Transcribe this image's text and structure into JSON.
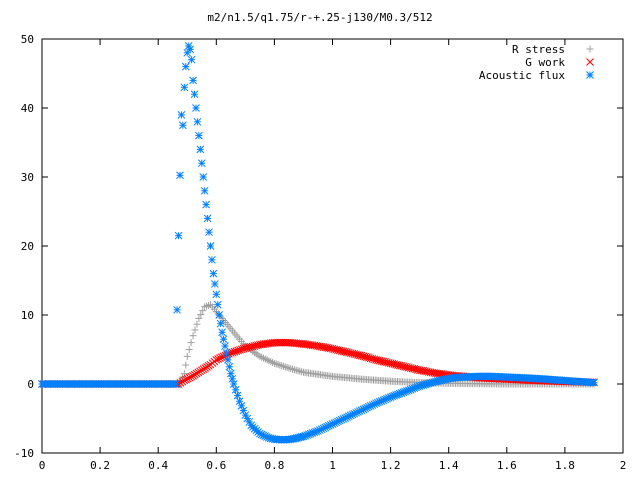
{
  "chart_data": {
    "type": "scatter",
    "title": "m2/n1.5/q1.75/r-+.25-j130/M0.3/512",
    "xlabel": "",
    "ylabel": "",
    "xlim": [
      0,
      2
    ],
    "ylim": [
      -10,
      50
    ],
    "xticks": [
      "0",
      "0.2",
      "0.4",
      "0.6",
      "0.8",
      "1",
      "1.2",
      "1.4",
      "1.6",
      "1.8",
      "2"
    ],
    "yticks": [
      "-10",
      "0",
      "10",
      "20",
      "30",
      "40",
      "50"
    ],
    "grid": false,
    "legend_position": "top-right",
    "series": [
      {
        "name": "R stress",
        "marker": "plus",
        "color": "#a0a0a0",
        "points": [
          [
            0.0,
            0
          ],
          [
            0.1,
            0
          ],
          [
            0.2,
            0
          ],
          [
            0.3,
            0
          ],
          [
            0.4,
            0
          ],
          [
            0.47,
            0
          ],
          [
            0.49,
            1.5
          ],
          [
            0.5,
            4
          ],
          [
            0.52,
            7
          ],
          [
            0.54,
            9.5
          ],
          [
            0.56,
            11.2
          ],
          [
            0.58,
            11.5
          ],
          [
            0.6,
            10.5
          ],
          [
            0.62,
            9.5
          ],
          [
            0.65,
            8
          ],
          [
            0.68,
            6.5
          ],
          [
            0.7,
            5.5
          ],
          [
            0.75,
            4
          ],
          [
            0.8,
            3
          ],
          [
            0.85,
            2.3
          ],
          [
            0.9,
            1.7
          ],
          [
            1.0,
            1.1
          ],
          [
            1.1,
            0.7
          ],
          [
            1.2,
            0.4
          ],
          [
            1.3,
            0.2
          ],
          [
            1.4,
            0.1
          ],
          [
            1.5,
            0.05
          ],
          [
            1.6,
            0
          ],
          [
            1.7,
            0
          ],
          [
            1.8,
            0
          ],
          [
            1.9,
            0
          ]
        ]
      },
      {
        "name": "G work",
        "marker": "cross",
        "color": "#ff0000",
        "points": [
          [
            0.0,
            0
          ],
          [
            0.1,
            0
          ],
          [
            0.2,
            0
          ],
          [
            0.3,
            0
          ],
          [
            0.4,
            0
          ],
          [
            0.47,
            0
          ],
          [
            0.49,
            0.5
          ],
          [
            0.52,
            1.2
          ],
          [
            0.55,
            2
          ],
          [
            0.58,
            2.8
          ],
          [
            0.6,
            3.5
          ],
          [
            0.65,
            4.5
          ],
          [
            0.7,
            5.2
          ],
          [
            0.75,
            5.7
          ],
          [
            0.8,
            6
          ],
          [
            0.85,
            6
          ],
          [
            0.9,
            5.8
          ],
          [
            0.95,
            5.5
          ],
          [
            1.0,
            5.1
          ],
          [
            1.05,
            4.6
          ],
          [
            1.1,
            4.1
          ],
          [
            1.15,
            3.5
          ],
          [
            1.2,
            3
          ],
          [
            1.25,
            2.5
          ],
          [
            1.3,
            2
          ],
          [
            1.35,
            1.6
          ],
          [
            1.4,
            1.3
          ],
          [
            1.45,
            1.1
          ],
          [
            1.5,
            0.9
          ],
          [
            1.6,
            0.7
          ],
          [
            1.7,
            0.5
          ],
          [
            1.8,
            0.35
          ],
          [
            1.9,
            0.25
          ]
        ]
      },
      {
        "name": "Acoustic flux",
        "marker": "star",
        "color": "#0080ff",
        "points": [
          [
            0.0,
            0
          ],
          [
            0.1,
            0
          ],
          [
            0.2,
            0
          ],
          [
            0.3,
            0
          ],
          [
            0.4,
            0
          ],
          [
            0.46,
            0
          ],
          [
            0.47,
            21.5
          ],
          [
            0.48,
            39
          ],
          [
            0.485,
            37.5
          ],
          [
            0.49,
            43
          ],
          [
            0.495,
            46
          ],
          [
            0.5,
            48
          ],
          [
            0.505,
            49
          ],
          [
            0.51,
            48.5
          ],
          [
            0.515,
            47
          ],
          [
            0.52,
            44
          ],
          [
            0.525,
            42
          ],
          [
            0.53,
            40
          ],
          [
            0.535,
            38
          ],
          [
            0.54,
            36
          ],
          [
            0.545,
            34
          ],
          [
            0.55,
            32
          ],
          [
            0.555,
            30
          ],
          [
            0.56,
            28
          ],
          [
            0.565,
            26
          ],
          [
            0.57,
            24
          ],
          [
            0.575,
            22
          ],
          [
            0.58,
            20
          ],
          [
            0.585,
            18
          ],
          [
            0.59,
            16
          ],
          [
            0.6,
            13
          ],
          [
            0.61,
            10
          ],
          [
            0.62,
            7.5
          ],
          [
            0.63,
            5.5
          ],
          [
            0.64,
            3.5
          ],
          [
            0.65,
            1.5
          ],
          [
            0.66,
            0
          ],
          [
            0.68,
            -2.5
          ],
          [
            0.7,
            -4.5
          ],
          [
            0.72,
            -6
          ],
          [
            0.75,
            -7.2
          ],
          [
            0.78,
            -7.8
          ],
          [
            0.8,
            -8
          ],
          [
            0.83,
            -8.1
          ],
          [
            0.86,
            -8
          ],
          [
            0.9,
            -7.6
          ],
          [
            0.95,
            -6.8
          ],
          [
            1.0,
            -5.8
          ],
          [
            1.05,
            -4.8
          ],
          [
            1.1,
            -3.8
          ],
          [
            1.15,
            -2.8
          ],
          [
            1.2,
            -1.9
          ],
          [
            1.25,
            -1.1
          ],
          [
            1.3,
            -0.3
          ],
          [
            1.35,
            0.3
          ],
          [
            1.4,
            0.8
          ],
          [
            1.45,
            1
          ],
          [
            1.5,
            1.1
          ],
          [
            1.55,
            1.1
          ],
          [
            1.6,
            1
          ],
          [
            1.65,
            0.9
          ],
          [
            1.7,
            0.8
          ],
          [
            1.75,
            0.65
          ],
          [
            1.8,
            0.5
          ],
          [
            1.85,
            0.35
          ],
          [
            1.9,
            0.2
          ]
        ]
      }
    ]
  }
}
